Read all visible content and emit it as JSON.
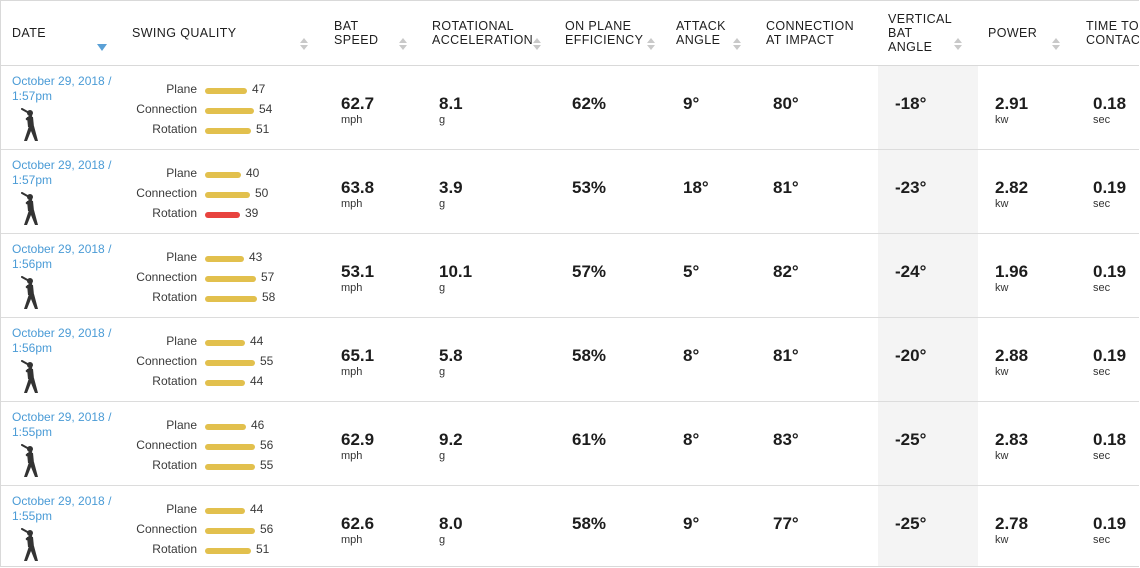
{
  "columns": {
    "date": "DATE",
    "swing_quality": "SWING QUALITY",
    "bat_speed": "BAT\nSPEED",
    "rotational_acceleration": "ROTATIONAL\nACCELERATION",
    "on_plane_efficiency": "ON PLANE\nEFFICIENCY",
    "attack_angle": "ATTACK\nANGLE",
    "connection_at_impact": "CONNECTION\nAT IMPACT",
    "vertical_bat_angle": "VERTICAL\nBAT\nANGLE",
    "power": "POWER",
    "time_to_contact": "TIME TO\nCONTACT"
  },
  "sq_labels": {
    "plane": "Plane",
    "connection": "Connection",
    "rotation": "Rotation"
  },
  "units": {
    "bat_speed": "mph",
    "rot_acc": "g",
    "power": "kw",
    "time": "sec"
  },
  "colors": {
    "bar_normal": "#e2c04d",
    "bar_low": "#e8433e",
    "link": "#4a9bd6",
    "sort_active": "#5aa0d6"
  },
  "sort": {
    "column": "date",
    "direction": "desc"
  },
  "rows": [
    {
      "date": "October 29, 2018 /\n1:57pm",
      "plane": "47",
      "connection": "54",
      "rotation": "51",
      "rotation_low": false,
      "bat_speed": "62.7",
      "rot_acc": "8.1",
      "ope": "62%",
      "attack": "9°",
      "cai": "80°",
      "vba": "-18°",
      "power": "2.91",
      "ttc": "0.18"
    },
    {
      "date": "October 29, 2018 /\n1:57pm",
      "plane": "40",
      "connection": "50",
      "rotation": "39",
      "rotation_low": true,
      "bat_speed": "63.8",
      "rot_acc": "3.9",
      "ope": "53%",
      "attack": "18°",
      "cai": "81°",
      "vba": "-23°",
      "power": "2.82",
      "ttc": "0.19"
    },
    {
      "date": "October 29, 2018 /\n1:56pm",
      "plane": "43",
      "connection": "57",
      "rotation": "58",
      "rotation_low": false,
      "bat_speed": "53.1",
      "rot_acc": "10.1",
      "ope": "57%",
      "attack": "5°",
      "cai": "82°",
      "vba": "-24°",
      "power": "1.96",
      "ttc": "0.19"
    },
    {
      "date": "October 29, 2018 /\n1:56pm",
      "plane": "44",
      "connection": "55",
      "rotation": "44",
      "rotation_low": false,
      "bat_speed": "65.1",
      "rot_acc": "5.8",
      "ope": "58%",
      "attack": "8°",
      "cai": "81°",
      "vba": "-20°",
      "power": "2.88",
      "ttc": "0.19"
    },
    {
      "date": "October 29, 2018 /\n1:55pm",
      "plane": "46",
      "connection": "56",
      "rotation": "55",
      "rotation_low": false,
      "bat_speed": "62.9",
      "rot_acc": "9.2",
      "ope": "61%",
      "attack": "8°",
      "cai": "83°",
      "vba": "-25°",
      "power": "2.83",
      "ttc": "0.18"
    },
    {
      "date": "October 29, 2018 /\n1:55pm",
      "plane": "44",
      "connection": "56",
      "rotation": "51",
      "rotation_low": false,
      "bat_speed": "62.6",
      "rot_acc": "8.0",
      "ope": "58%",
      "attack": "9°",
      "cai": "77°",
      "vba": "-25°",
      "power": "2.78",
      "ttc": "0.19"
    }
  ]
}
